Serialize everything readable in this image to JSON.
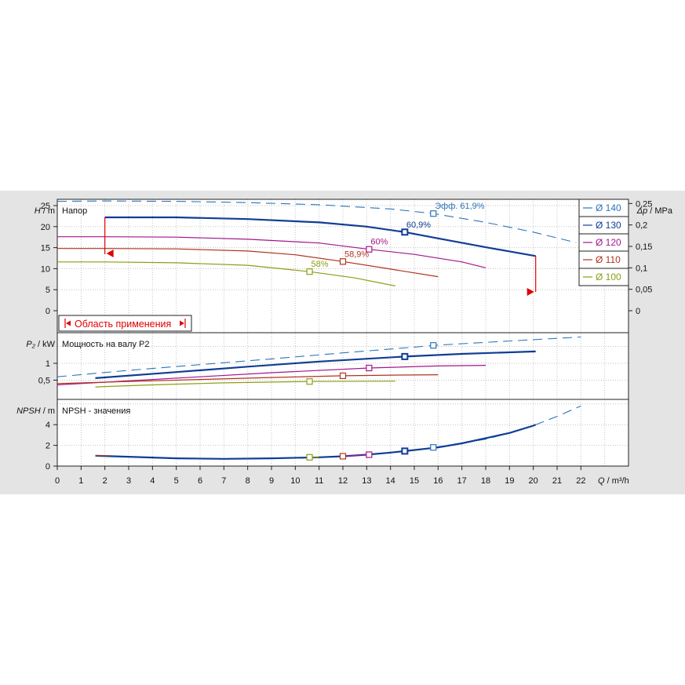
{
  "chart_data": {
    "type": "line",
    "x_axis": {
      "label": "Q / m³/h",
      "label_var": "Q",
      "label_unit": "m³/h",
      "range": [
        0,
        24
      ],
      "ticks": [
        0,
        1,
        2,
        3,
        4,
        5,
        6,
        7,
        8,
        9,
        10,
        11,
        12,
        13,
        14,
        15,
        16,
        17,
        18,
        19,
        20,
        21,
        22
      ]
    },
    "legend": {
      "placement": "top-right",
      "entries": [
        {
          "label": "Ø 140",
          "color": "#2d74b8"
        },
        {
          "label": "Ø 130",
          "color": "#103d95"
        },
        {
          "label": "Ø 120",
          "color": "#a3168d"
        },
        {
          "label": "Ø 110",
          "color": "#b1341e"
        },
        {
          "label": "Ø 100",
          "color": "#8d9d15"
        }
      ]
    },
    "panels": [
      {
        "id": "head",
        "title": "Напор",
        "y_label": "H / m",
        "y_label_var": "H",
        "y_label_unit": "m",
        "y_range": [
          0,
          27.5
        ],
        "y_ticks": [
          "0",
          "5",
          "10",
          "15",
          "20",
          "25"
        ],
        "right_axis": {
          "label": "Δp / MPa",
          "label_var": "Δp",
          "label_unit": "MPa",
          "ticks": [
            "0",
            "0,05",
            "0,1",
            "0,15",
            "0,2",
            "0,25"
          ]
        },
        "series": [
          {
            "name": "Ø 140",
            "color": "#2d74b8",
            "dashed": true,
            "x": [
              0,
              2,
              5,
              8,
              11,
              14,
              15.8,
              18,
              20,
              21.8
            ],
            "y": [
              26,
              26.1,
              26,
              25.7,
              25.2,
              24.2,
              23.1,
              21,
              18.7,
              16.2
            ]
          },
          {
            "name": "Ø 130",
            "color": "#103d95",
            "dashed": false,
            "x": [
              2,
              5,
              8,
              11,
              13,
              14.6,
              16,
              18,
              20.1
            ],
            "y": [
              22.2,
              22.2,
              21.8,
              21,
              20,
              18.7,
              17.2,
              15.1,
              13
            ]
          },
          {
            "name": "Ø 120",
            "color": "#a3168d",
            "dashed": false,
            "x": [
              0,
              2,
              5,
              8,
              11,
              13.1,
              15,
              17,
              18
            ],
            "y": [
              17.6,
              17.6,
              17.5,
              17,
              16.1,
              14.6,
              13.4,
              11.6,
              10.2
            ]
          },
          {
            "name": "Ø 110",
            "color": "#b1341e",
            "dashed": false,
            "x": [
              0,
              2,
              5,
              8,
              10,
              12,
              14,
              16
            ],
            "y": [
              14.8,
              14.8,
              14.7,
              14.2,
              13.3,
              11.7,
              9.9,
              8.1
            ]
          },
          {
            "name": "Ø 100",
            "color": "#8d9d15",
            "dashed": false,
            "x": [
              0,
              2,
              5,
              8,
              10.6,
              12.5,
              14.2
            ],
            "y": [
              11.6,
              11.6,
              11.4,
              10.8,
              9.3,
              7.8,
              5.9
            ]
          }
        ],
        "markers": [
          {
            "series": "Ø 140",
            "x": 15.8,
            "y": 23.1,
            "label": "Эфф.  61,9%"
          },
          {
            "series": "Ø 130",
            "x": 14.6,
            "y": 18.7,
            "label": "60,9%"
          },
          {
            "series": "Ø 120",
            "x": 13.1,
            "y": 14.6,
            "label": "60%"
          },
          {
            "series": "Ø 110",
            "x": 12.0,
            "y": 11.7,
            "label": "58,9%"
          },
          {
            "series": "Ø 100",
            "x": 10.6,
            "y": 9.3,
            "label": "58%"
          }
        ],
        "application_range": {
          "label": "Область применения",
          "q_min": 2,
          "q_max": 20.1
        }
      },
      {
        "id": "power",
        "title": "Мощность на валу P2",
        "y_label": "P₂ / kW",
        "y_label_var": "P₂",
        "y_label_unit": "kW",
        "y_range": [
          0,
          1.8
        ],
        "y_ticks": [
          "0,5",
          "1"
        ],
        "series": [
          {
            "name": "Ø 140",
            "color": "#2d74b8",
            "dashed": true,
            "x": [
              0,
              3,
              6,
              9,
              12,
              15,
              15.8,
              18,
              20,
              22
            ],
            "y": [
              0.6,
              0.79,
              0.96,
              1.13,
              1.31,
              1.48,
              1.53,
              1.62,
              1.7,
              1.78
            ]
          },
          {
            "name": "Ø 130",
            "color": "#103d95",
            "dashed": false,
            "x": [
              1.6,
              5,
              8,
              11,
              14.6,
              17,
              20.1
            ],
            "y": [
              0.56,
              0.74,
              0.9,
              1.05,
              1.2,
              1.28,
              1.35
            ]
          },
          {
            "name": "Ø 120",
            "color": "#a3168d",
            "dashed": false,
            "x": [
              0,
              3,
              6,
              9,
              13.1,
              16,
              18
            ],
            "y": [
              0.36,
              0.48,
              0.6,
              0.72,
              0.86,
              0.92,
              0.94
            ]
          },
          {
            "name": "Ø 110",
            "color": "#b1341e",
            "dashed": false,
            "x": [
              0,
              3,
              6,
              9,
              12,
              14,
              16
            ],
            "y": [
              0.4,
              0.46,
              0.52,
              0.58,
              0.63,
              0.65,
              0.66
            ]
          },
          {
            "name": "Ø 100",
            "color": "#8d9d15",
            "dashed": false,
            "x": [
              1.6,
              4,
              7,
              10.6,
              14.2
            ],
            "y": [
              0.3,
              0.36,
              0.42,
              0.46,
              0.47
            ]
          }
        ],
        "markers": [
          {
            "series": "Ø 140",
            "x": 15.8,
            "y": 1.53
          },
          {
            "series": "Ø 130",
            "x": 14.6,
            "y": 1.2
          },
          {
            "series": "Ø 120",
            "x": 13.1,
            "y": 0.86
          },
          {
            "series": "Ø 110",
            "x": 12.0,
            "y": 0.63
          },
          {
            "series": "Ø 100",
            "x": 10.6,
            "y": 0.46
          }
        ]
      },
      {
        "id": "npsh",
        "title": "NPSH - значения",
        "y_label": "NPSH / m",
        "y_label_var": "NPSH",
        "y_label_unit": "m",
        "y_range": [
          0,
          6.2
        ],
        "y_ticks": [
          "0",
          "2",
          "4"
        ],
        "series": [
          {
            "name": "Ø 140",
            "color": "#2d74b8",
            "dashed": true,
            "x": [
              15.8,
              17,
              18,
              19,
              20,
              21,
              22
            ],
            "y": [
              1.8,
              2.2,
              2.6,
              3.2,
              3.9,
              4.8,
              5.8
            ]
          },
          {
            "name": "Ø 130",
            "color": "#103d95",
            "dashed": false,
            "x": [
              1.6,
              3,
              5,
              7,
              9,
              11,
              12,
              13,
              14,
              14.6,
              16,
              17,
              18,
              19,
              20,
              20.1
            ],
            "y": [
              1.0,
              0.9,
              0.75,
              0.7,
              0.75,
              0.85,
              0.95,
              1.1,
              1.3,
              1.45,
              1.8,
              2.2,
              2.7,
              3.2,
              3.9,
              4.0
            ]
          },
          {
            "name": "Ø 120",
            "color": "#a3168d",
            "dashed": false,
            "x": [
              12,
              13.1
            ],
            "y": [
              0.95,
              1.1
            ]
          },
          {
            "name": "Ø 110",
            "color": "#b1341e",
            "dashed": false,
            "x": [
              1.6,
              2.2
            ],
            "y": [
              1.0,
              1.0
            ]
          },
          {
            "name": "Ø 100",
            "color": "#8d9d15",
            "dashed": false,
            "x": [
              10.6,
              11
            ],
            "y": [
              0.85,
              0.87
            ]
          }
        ],
        "markers": [
          {
            "series": "Ø 140",
            "x": 15.8,
            "y": 1.8
          },
          {
            "series": "Ø 130",
            "x": 14.6,
            "y": 1.45
          },
          {
            "series": "Ø 120",
            "x": 13.1,
            "y": 1.1
          },
          {
            "series": "Ø 110",
            "x": 12.0,
            "y": 0.95
          },
          {
            "series": "Ø 100",
            "x": 10.6,
            "y": 0.85
          }
        ]
      }
    ]
  }
}
